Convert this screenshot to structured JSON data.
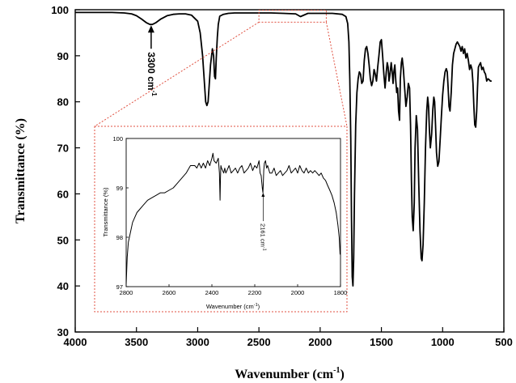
{
  "chart_data": [
    {
      "type": "line",
      "xlabel": "Wavenumber (cm",
      "xlabel_sup": "-1",
      "xlabel_close": ")",
      "ylabel": "Transmittance (%)",
      "xlim": [
        4000,
        500
      ],
      "ylim": [
        30,
        100
      ],
      "xticks": [
        4000,
        3500,
        3000,
        2500,
        2000,
        1500,
        1000,
        500
      ],
      "yticks": [
        30,
        40,
        50,
        60,
        70,
        80,
        90,
        100
      ],
      "xtick_labels": [
        "4000",
        "3500",
        "3000",
        "2500",
        "2000",
        "1500",
        "1000",
        "500"
      ],
      "ytick_labels": [
        "30",
        "40",
        "50",
        "60",
        "70",
        "80",
        "90",
        "100"
      ],
      "grid": false,
      "annotation": {
        "text": "3300 cm",
        "sup": "-1",
        "x": 3380,
        "y": 96.8
      },
      "zoom_region": {
        "x": [
          2500,
          1950
        ],
        "y": [
          97.3,
          99.9
        ]
      },
      "series": [
        {
          "x": [
            4000,
            3900,
            3800,
            3700,
            3600,
            3540,
            3500,
            3460,
            3420,
            3390,
            3370,
            3340,
            3300,
            3250,
            3200,
            3150,
            3100,
            3050,
            3000,
            2980,
            2960,
            2945,
            2935,
            2925,
            2915,
            2905,
            2895,
            2880,
            2870,
            2862,
            2855,
            2848,
            2840,
            2832,
            2820,
            2790,
            2750,
            2700,
            2600,
            2500,
            2400,
            2300,
            2200,
            2161,
            2100,
            2000,
            1900,
            1820,
            1790,
            1775,
            1765,
            1758,
            1750,
            1744,
            1738,
            1732,
            1726,
            1720,
            1710,
            1700,
            1690,
            1680,
            1670,
            1660,
            1650,
            1640,
            1630,
            1620,
            1610,
            1600,
            1590,
            1580,
            1570,
            1560,
            1550,
            1540,
            1530,
            1520,
            1510,
            1500,
            1490,
            1480,
            1470,
            1460,
            1452,
            1445,
            1438,
            1430,
            1420,
            1412,
            1405,
            1398,
            1390,
            1382,
            1375,
            1368,
            1360,
            1352,
            1345,
            1337,
            1330,
            1320,
            1310,
            1300,
            1290,
            1280,
            1270,
            1262,
            1255,
            1248,
            1240,
            1232,
            1225,
            1215,
            1205,
            1195,
            1185,
            1175,
            1168,
            1160,
            1150,
            1140,
            1130,
            1122,
            1115,
            1108,
            1100,
            1090,
            1080,
            1072,
            1065,
            1058,
            1050,
            1040,
            1030,
            1020,
            1010,
            1000,
            990,
            980,
            970,
            962,
            955,
            948,
            940,
            930,
            920,
            910,
            900,
            890,
            880,
            870,
            860,
            850,
            840,
            830,
            820,
            810,
            800,
            790,
            780,
            770,
            760,
            752,
            745,
            738,
            730,
            722,
            715,
            708,
            700,
            690,
            680,
            670,
            660,
            650,
            640,
            630,
            620,
            610,
            600
          ],
          "y": [
            99.4,
            99.4,
            99.4,
            99.4,
            99.3,
            99.1,
            98.7,
            98.0,
            97.2,
            96.8,
            96.8,
            97.2,
            98.0,
            98.7,
            99.0,
            99.1,
            99.1,
            98.8,
            97.5,
            95.0,
            90.0,
            84.0,
            80.0,
            79.2,
            80.0,
            84.0,
            88.0,
            91.5,
            90.0,
            85.5,
            85.0,
            89.5,
            94.0,
            96.8,
            98.6,
            99.0,
            99.2,
            99.3,
            99.3,
            99.3,
            99.3,
            99.2,
            99.1,
            98.5,
            99.2,
            99.2,
            99.2,
            99.0,
            98.5,
            97.0,
            93.0,
            85.0,
            72.0,
            55.0,
            42.0,
            40.0,
            46.0,
            60.0,
            75.0,
            82.0,
            85.0,
            86.5,
            86.0,
            84.0,
            84.5,
            89.0,
            91.5,
            92.0,
            90.5,
            88.0,
            85.0,
            83.5,
            84.5,
            87.0,
            86.0,
            84.5,
            87.5,
            90.0,
            93.0,
            93.5,
            90.0,
            86.0,
            83.0,
            86.5,
            88.5,
            87.5,
            84.5,
            86.0,
            88.5,
            86.5,
            84.0,
            86.5,
            88.0,
            84.5,
            82.0,
            83.0,
            78.0,
            76.0,
            85.0,
            88.5,
            89.5,
            87.0,
            83.0,
            79.0,
            81.0,
            84.0,
            83.0,
            75.0,
            63.0,
            55.0,
            52.0,
            58.0,
            70.0,
            77.0,
            74.0,
            62.0,
            52.0,
            46.0,
            45.5,
            49.0,
            58.0,
            70.0,
            78.0,
            81.0,
            79.0,
            74.0,
            70.0,
            73.0,
            78.5,
            81.0,
            80.0,
            75.0,
            69.0,
            66.0,
            67.0,
            72.0,
            77.0,
            81.5,
            84.5,
            86.5,
            87.2,
            86.5,
            83.0,
            79.0,
            78.0,
            82.0,
            88.0,
            90.5,
            91.5,
            92.5,
            93.0,
            92.5,
            92.0,
            91.0,
            92.0,
            90.5,
            91.5,
            89.5,
            90.5,
            89.0,
            87.0,
            88.0,
            87.0,
            84.0,
            79.0,
            75.0,
            74.5,
            78.0,
            83.0,
            87.5,
            88.0,
            88.5,
            87.0,
            87.5,
            86.5,
            86.0,
            84.5,
            85.0,
            84.8,
            84.5,
            84.5
          ]
        }
      ]
    },
    {
      "type": "line",
      "xlabel": "Wavenumber (cm",
      "xlabel_sup": "-1",
      "xlabel_close": ")",
      "ylabel": "Transmittance (%)",
      "xlim": [
        2800,
        1800
      ],
      "ylim": [
        97,
        100
      ],
      "xticks": [
        2800,
        2600,
        2400,
        2200,
        2000,
        1800
      ],
      "yticks": [
        97,
        98,
        99,
        100
      ],
      "xtick_labels": [
        "2800",
        "2600",
        "2400",
        "2200",
        "2000",
        "1800"
      ],
      "ytick_labels": [
        "97",
        "98",
        "99",
        "100"
      ],
      "grid": false,
      "annotation": {
        "text": "2161 cm",
        "sup": "-1",
        "x": 2161,
        "y": 98.95
      },
      "series": [
        {
          "x": [
            2800,
            2795,
            2790,
            2780,
            2770,
            2760,
            2750,
            2740,
            2720,
            2700,
            2680,
            2660,
            2640,
            2620,
            2600,
            2580,
            2560,
            2540,
            2520,
            2500,
            2480,
            2470,
            2460,
            2450,
            2440,
            2430,
            2420,
            2410,
            2400,
            2395,
            2390,
            2380,
            2370,
            2365,
            2362,
            2360,
            2358,
            2355,
            2350,
            2345,
            2340,
            2335,
            2330,
            2320,
            2310,
            2300,
            2290,
            2280,
            2270,
            2260,
            2250,
            2240,
            2230,
            2220,
            2210,
            2200,
            2190,
            2180,
            2175,
            2170,
            2165,
            2162,
            2160,
            2158,
            2155,
            2150,
            2145,
            2140,
            2130,
            2120,
            2110,
            2100,
            2090,
            2080,
            2070,
            2060,
            2050,
            2040,
            2030,
            2020,
            2010,
            2000,
            1990,
            1980,
            1970,
            1960,
            1950,
            1940,
            1930,
            1920,
            1910,
            1900,
            1890,
            1880,
            1870,
            1860,
            1850,
            1840,
            1830,
            1820,
            1812,
            1806,
            1802
          ],
          "y": [
            97.05,
            97.6,
            97.9,
            98.1,
            98.3,
            98.4,
            98.5,
            98.55,
            98.65,
            98.75,
            98.8,
            98.85,
            98.9,
            98.9,
            98.95,
            99.0,
            99.1,
            99.2,
            99.3,
            99.45,
            99.45,
            99.4,
            99.5,
            99.4,
            99.5,
            99.4,
            99.55,
            99.45,
            99.6,
            99.7,
            99.55,
            99.5,
            99.6,
            99.3,
            98.75,
            99.2,
            99.45,
            99.4,
            99.35,
            99.3,
            99.4,
            99.3,
            99.35,
            99.45,
            99.3,
            99.35,
            99.4,
            99.3,
            99.4,
            99.45,
            99.3,
            99.35,
            99.4,
            99.5,
            99.35,
            99.45,
            99.4,
            99.55,
            99.3,
            99.25,
            99.0,
            98.9,
            99.1,
            99.35,
            99.5,
            99.55,
            99.4,
            99.45,
            99.3,
            99.3,
            99.4,
            99.25,
            99.3,
            99.35,
            99.25,
            99.3,
            99.35,
            99.45,
            99.3,
            99.35,
            99.4,
            99.3,
            99.45,
            99.35,
            99.3,
            99.4,
            99.3,
            99.35,
            99.3,
            99.35,
            99.3,
            99.25,
            99.3,
            99.2,
            99.15,
            99.05,
            98.95,
            98.85,
            98.7,
            98.5,
            98.25,
            98.0,
            97.65
          ]
        }
      ]
    }
  ]
}
